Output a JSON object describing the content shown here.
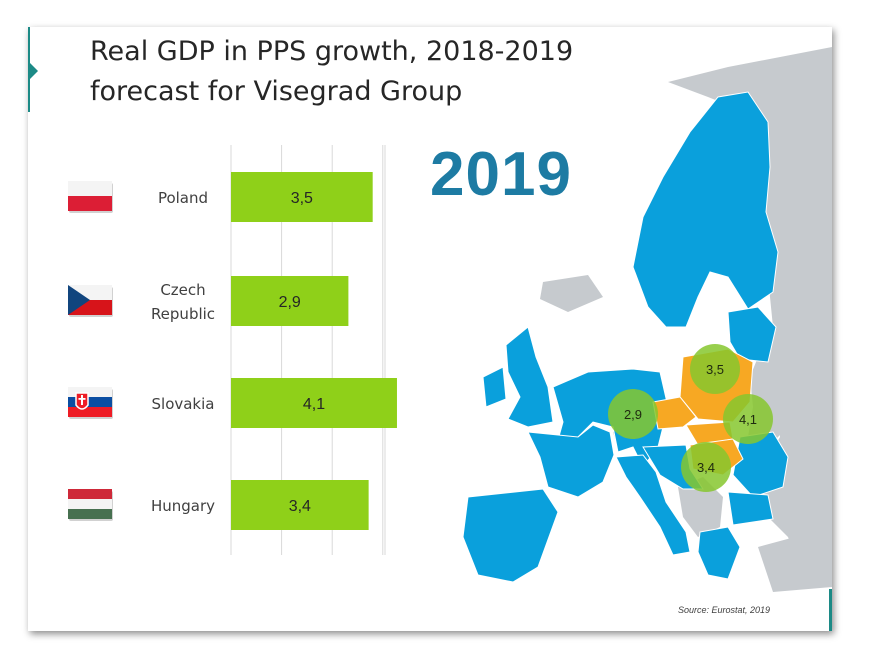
{
  "slide": {
    "title_line1": "Real GDP in PPS growth, 2018-2019",
    "title_line2": "forecast for Visegrad Group",
    "year_label": "2019",
    "source": "Source: Eurostat, 2019"
  },
  "colors": {
    "bar": "#8fd019",
    "map_eu": "#0aa0dc",
    "map_other": "#c6cace",
    "map_visegrad": "#f7a823",
    "bubble": "#86c72e",
    "year": "#1d7ba3",
    "accent": "#1c8a86"
  },
  "chart_data": {
    "type": "bar",
    "orientation": "horizontal",
    "categories": [
      "Poland",
      "Czech Republic",
      "Slovakia",
      "Hungary"
    ],
    "category_lines": [
      [
        "Poland"
      ],
      [
        "Czech",
        "Republic"
      ],
      [
        "Slovakia"
      ],
      [
        "Hungary"
      ]
    ],
    "values": [
      3.5,
      2.9,
      4.1,
      3.4
    ],
    "value_labels": [
      "3,5",
      "2,9",
      "4,1",
      "3,4"
    ],
    "flags": [
      "poland-flag",
      "czech-flag",
      "slovakia-flag",
      "hungary-flag"
    ],
    "xlim": [
      0,
      4.2
    ],
    "grid": true
  },
  "map": {
    "bubbles": [
      {
        "country": "Poland",
        "label": "3,5"
      },
      {
        "country": "Czech Republic",
        "label": "2,9"
      },
      {
        "country": "Slovakia",
        "label": "4,1"
      },
      {
        "country": "Hungary",
        "label": "3,4"
      }
    ]
  }
}
